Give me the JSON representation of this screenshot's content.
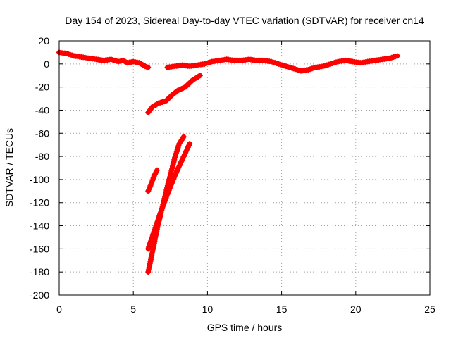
{
  "chart_data": {
    "type": "scatter",
    "title": "Day 154 of 2023, Sidereal Day-to-day VTEC variation (SDTVAR) for receiver cn14",
    "xlabel": "GPS time / hours",
    "ylabel": "SDTVAR / TECUs",
    "xlim": [
      0,
      25
    ],
    "ylim": [
      -200,
      20
    ],
    "xticks": [
      0,
      5,
      10,
      15,
      20,
      25
    ],
    "yticks": [
      20,
      0,
      -20,
      -40,
      -60,
      -80,
      -100,
      -120,
      -140,
      -160,
      -180,
      -200
    ],
    "grid": true,
    "legend": "none",
    "marker": "plus",
    "series": [
      {
        "color": "#ff0000",
        "x": [
          0.0,
          0.5,
          1.0,
          1.5,
          2.0,
          2.5,
          3.0,
          3.5,
          4.0,
          4.3,
          4.6,
          5.0,
          5.4,
          5.8,
          6.0
        ],
        "y": [
          10,
          9,
          7,
          6,
          5,
          4,
          3,
          4,
          2,
          3,
          1,
          2,
          1,
          -2,
          -3
        ]
      },
      {
        "color": "#ff0000",
        "x": [
          7.3,
          7.8,
          8.3,
          8.8,
          9.3,
          9.8,
          10.3,
          10.8,
          11.3,
          11.8,
          12.3,
          12.8,
          13.3,
          13.8,
          14.3,
          14.8,
          15.3,
          15.8,
          16.3,
          16.8,
          17.3,
          17.8,
          18.3,
          18.8,
          19.3,
          19.8,
          20.3,
          20.8,
          21.3,
          21.8,
          22.3,
          22.8
        ],
        "y": [
          -3,
          -2,
          -1,
          -2,
          -1,
          0,
          2,
          3,
          4,
          3,
          3,
          4,
          3,
          3,
          2,
          0,
          -2,
          -4,
          -6,
          -5,
          -3,
          -2,
          0,
          2,
          3,
          2,
          1,
          2,
          3,
          4,
          5,
          7
        ]
      },
      {
        "color": "#ff0000",
        "x": [
          6.0,
          6.3,
          6.7,
          7.2,
          7.6,
          8.0,
          8.5,
          9.0,
          9.5
        ],
        "y": [
          -42,
          -37,
          -34,
          -32,
          -27,
          -23,
          -20,
          -14,
          -10
        ]
      },
      {
        "color": "#ff0000",
        "x": [
          6.0,
          6.2,
          6.4,
          6.6
        ],
        "y": [
          -110,
          -104,
          -97,
          -92
        ]
      },
      {
        "color": "#ff0000",
        "x": [
          6.0,
          6.3,
          6.6,
          6.9,
          7.2,
          7.5,
          7.8,
          8.1,
          8.4
        ],
        "y": [
          -180,
          -162,
          -143,
          -127,
          -111,
          -96,
          -81,
          -69,
          -63
        ]
      },
      {
        "color": "#ff0000",
        "x": [
          6.0,
          6.4,
          6.8,
          7.2,
          7.6,
          8.0,
          8.4,
          8.8
        ],
        "y": [
          -160,
          -145,
          -130,
          -116,
          -103,
          -91,
          -80,
          -69
        ]
      }
    ]
  }
}
